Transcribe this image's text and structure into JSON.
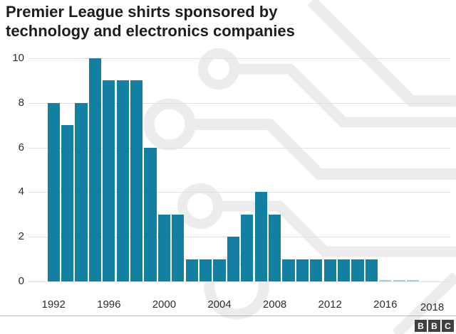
{
  "title": {
    "line1": "Premier League shirts sponsored by",
    "line2": "technology and electronics companies"
  },
  "footer": {
    "logo_letters": [
      "B",
      "B",
      "C"
    ]
  },
  "colors": {
    "bar": "#1380a1",
    "zero_bar": "#abcfdd",
    "gridline": "#e2e2e2",
    "text": "#2e2e2e",
    "title_text": "#1d1d1d",
    "pattern": "#ececec",
    "logo_block": "#404040"
  },
  "chart_data": {
    "type": "bar",
    "title": "Premier League shirts sponsored by technology and electronics companies",
    "xlabel": "",
    "ylabel": "",
    "x": [
      1992,
      1993,
      1994,
      1995,
      1996,
      1997,
      1998,
      1999,
      2000,
      2001,
      2002,
      2003,
      2004,
      2005,
      2006,
      2007,
      2008,
      2009,
      2010,
      2011,
      2012,
      2013,
      2014,
      2015,
      2016,
      2017,
      2018
    ],
    "values": [
      8,
      7,
      8,
      10,
      9,
      9,
      9,
      6,
      3,
      3,
      1,
      1,
      1,
      2,
      3,
      4,
      3,
      1,
      1,
      1,
      1,
      1,
      1,
      1,
      0,
      0,
      0
    ],
    "ylim": [
      0,
      10
    ],
    "yticks": [
      0,
      2,
      4,
      6,
      8,
      10
    ],
    "xticks": [
      1992,
      1996,
      2000,
      2004,
      2008,
      2012,
      2016,
      2018
    ],
    "grid": true,
    "legend": "none"
  }
}
